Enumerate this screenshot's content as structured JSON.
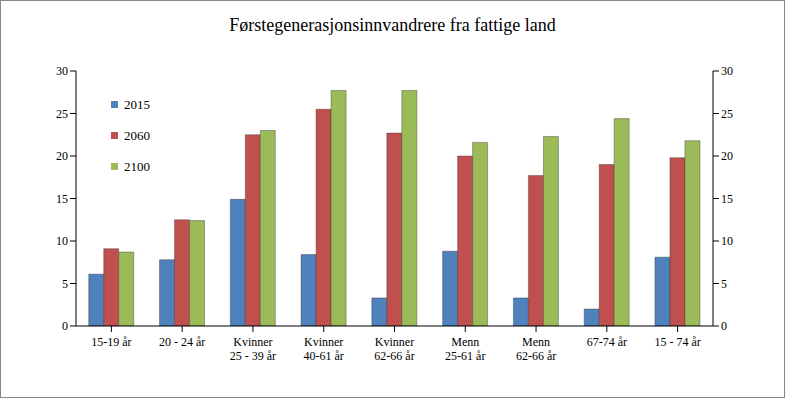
{
  "chart_data": {
    "type": "bar",
    "title": "Førstegenerasjonsinnvandrere fra fattige land",
    "categories": [
      "15-19 år",
      "20 - 24 år",
      "Kvinner\n25 - 39 år",
      "Kvinner\n40-61 år",
      "Kvinner\n62-66 år",
      "Menn\n25-61 år",
      "Menn\n62-66 år",
      "67-74 år",
      "15 - 74 år"
    ],
    "series": [
      {
        "name": "2015",
        "color": "#4f81bd",
        "values": [
          6.1,
          7.8,
          14.9,
          8.4,
          3.3,
          8.8,
          3.3,
          2.0,
          8.1
        ]
      },
      {
        "name": "2060",
        "color": "#c0504d",
        "values": [
          9.1,
          12.5,
          22.5,
          25.5,
          22.7,
          20.0,
          17.7,
          19.0,
          19.8
        ]
      },
      {
        "name": "2100",
        "color": "#9bbb59",
        "values": [
          8.7,
          12.4,
          23.0,
          27.7,
          27.7,
          21.6,
          22.3,
          24.4,
          21.8
        ]
      }
    ],
    "ylim": [
      0,
      30
    ],
    "yticks": [
      0,
      5,
      10,
      15,
      20,
      25,
      30
    ],
    "y2lim": [
      0,
      30
    ],
    "y2ticks": [
      0,
      5,
      10,
      15,
      20,
      25,
      30
    ],
    "grid": false,
    "legend": "upper left"
  }
}
